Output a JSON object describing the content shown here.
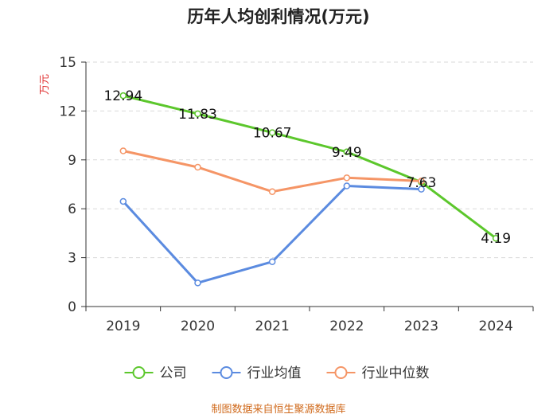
{
  "title": "历年人均创利情况(万元)",
  "source": "制图数据来自恒生聚源数据库",
  "chart_data": {
    "type": "line",
    "title": "历年人均创利情况(万元)",
    "ylabel": "万元",
    "xlabel": "",
    "categories": [
      "2019",
      "2020",
      "2021",
      "2022",
      "2023",
      "2024"
    ],
    "ylim": [
      0,
      15
    ],
    "yticks": [
      0,
      3,
      6,
      9,
      12,
      15
    ],
    "grid": true,
    "legend_position": "bottom",
    "series": [
      {
        "name": "公司",
        "color": "#5cc72c",
        "values": [
          12.94,
          11.83,
          10.67,
          9.49,
          7.63,
          4.19
        ],
        "show_labels": true
      },
      {
        "name": "行业均值",
        "color": "#5b8be0",
        "values": [
          6.45,
          1.45,
          2.75,
          7.4,
          7.2,
          null
        ],
        "show_labels": false
      },
      {
        "name": "行业中位数",
        "color": "#f59566",
        "values": [
          9.55,
          8.55,
          7.05,
          7.9,
          7.7,
          null
        ],
        "show_labels": false
      }
    ]
  }
}
